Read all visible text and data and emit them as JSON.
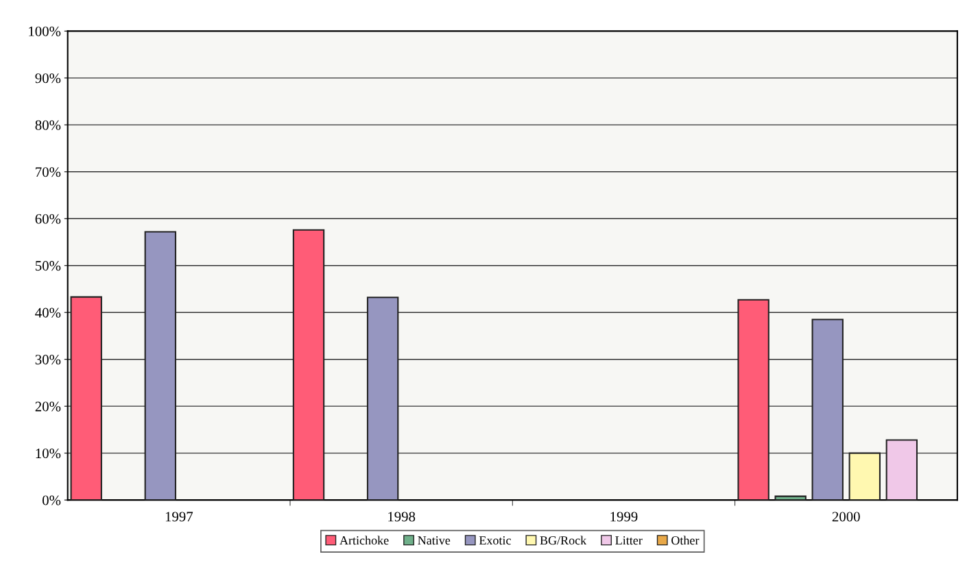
{
  "chart_data": {
    "type": "bar",
    "categories": [
      "1997",
      "1998",
      "1999",
      "2000"
    ],
    "series": [
      {
        "name": "Artichoke",
        "color": "#ff5c77",
        "values": [
          43.3,
          57.6,
          null,
          42.7
        ]
      },
      {
        "name": "Native",
        "color": "#6fb08a",
        "values": [
          null,
          null,
          null,
          0.8
        ]
      },
      {
        "name": "Exotic",
        "color": "#9696c0",
        "values": [
          57.2,
          43.2,
          null,
          38.5
        ]
      },
      {
        "name": "BG/Rock",
        "color": "#fff8b0",
        "values": [
          null,
          null,
          null,
          10
        ]
      },
      {
        "name": "Litter",
        "color": "#f0c8e8",
        "values": [
          null,
          null,
          null,
          12.8
        ]
      },
      {
        "name": "Other",
        "color": "#e8a848",
        "values": [
          null,
          null,
          null,
          null
        ]
      }
    ],
    "ylim": [
      0,
      100
    ],
    "yticks": [
      {
        "value": 0,
        "label": "0%"
      },
      {
        "value": 10,
        "label": "10%"
      },
      {
        "value": 20,
        "label": "20%"
      },
      {
        "value": 30,
        "label": "30%"
      },
      {
        "value": 40,
        "label": "40%"
      },
      {
        "value": 50,
        "label": "50%"
      },
      {
        "value": 60,
        "label": "60%"
      },
      {
        "value": 70,
        "label": "70%"
      },
      {
        "value": 80,
        "label": "80%"
      },
      {
        "value": 90,
        "label": "90%"
      },
      {
        "value": 100,
        "label": "100%"
      }
    ],
    "grid": "y",
    "legend": "bottom"
  }
}
